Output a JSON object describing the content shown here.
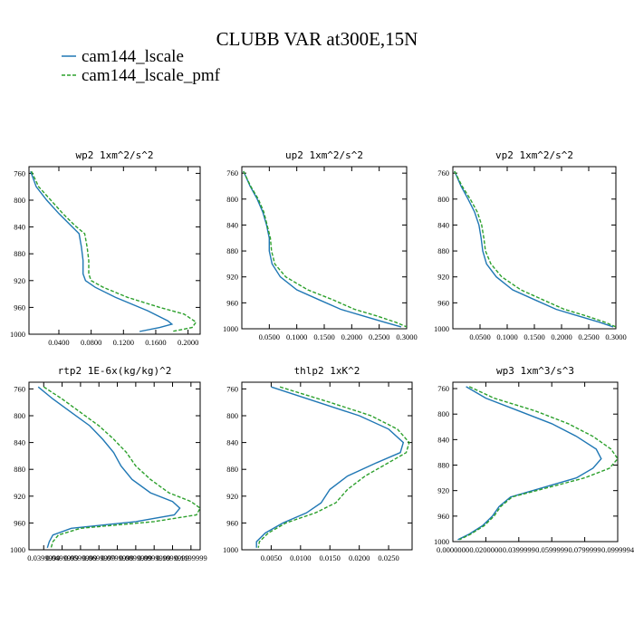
{
  "title": "CLUBB VAR at300E,15N",
  "legend": [
    {
      "name": "cam144_lscale",
      "color": "#1f77b4",
      "dash": false
    },
    {
      "name": "cam144_lscale_pmf",
      "color": "#2ca02c",
      "dash": true
    }
  ],
  "chart_data": [
    {
      "type": "line",
      "title": "wp2  1xm^2/s^2",
      "ylim": [
        1000,
        750
      ],
      "yticks": [
        760,
        800,
        840,
        880,
        920,
        960,
        1000
      ],
      "ytick_labels": [
        "760",
        "800",
        "840",
        "880",
        "920",
        "960",
        "1000"
      ],
      "xlim": [
        0.003,
        0.215
      ],
      "xticks": [
        0.04,
        0.08,
        0.12,
        0.16,
        0.2
      ],
      "xtick_labels": [
        "0.0400",
        "0.0800",
        "0.1200",
        "0.1600",
        "0.2000"
      ],
      "series": [
        {
          "name": "cam144_lscale",
          "x": [
            0.005,
            0.012,
            0.025,
            0.04,
            0.055,
            0.065,
            0.068,
            0.07,
            0.07,
            0.073,
            0.085,
            0.11,
            0.15,
            0.175,
            0.18,
            0.165,
            0.14
          ],
          "y": [
            757,
            780,
            800,
            820,
            838,
            850,
            870,
            890,
            910,
            920,
            930,
            945,
            965,
            980,
            985,
            990,
            996
          ]
        },
        {
          "name": "cam144_lscale_pmf",
          "x": [
            0.006,
            0.015,
            0.03,
            0.045,
            0.06,
            0.072,
            0.075,
            0.077,
            0.077,
            0.08,
            0.095,
            0.125,
            0.165,
            0.195,
            0.21,
            0.205,
            0.18
          ],
          "y": [
            757,
            780,
            800,
            820,
            838,
            850,
            870,
            890,
            910,
            920,
            930,
            945,
            960,
            970,
            982,
            990,
            996
          ]
        }
      ]
    },
    {
      "type": "line",
      "title": "up2  1xm^2/s^2",
      "ylim": [
        1000,
        750
      ],
      "yticks": [
        760,
        800,
        840,
        880,
        920,
        960,
        1000
      ],
      "ytick_labels": [
        "760",
        "800",
        "840",
        "880",
        "920",
        "960",
        "1000"
      ],
      "xlim": [
        0.0,
        0.3
      ],
      "xticks": [
        0.05,
        0.1,
        0.15,
        0.2,
        0.25,
        0.3
      ],
      "xtick_labels": [
        "0.0500",
        "0.1000",
        "0.1500",
        "0.2000",
        "0.2500",
        "0.3000"
      ],
      "series": [
        {
          "name": "cam144_lscale",
          "x": [
            0.003,
            0.015,
            0.028,
            0.038,
            0.045,
            0.05,
            0.05,
            0.055,
            0.07,
            0.1,
            0.14,
            0.18,
            0.22,
            0.26,
            0.29
          ],
          "y": [
            757,
            780,
            800,
            820,
            840,
            860,
            880,
            900,
            920,
            940,
            955,
            970,
            980,
            990,
            997
          ]
        },
        {
          "name": "cam144_lscale_pmf",
          "x": [
            0.003,
            0.016,
            0.03,
            0.04,
            0.046,
            0.052,
            0.054,
            0.06,
            0.08,
            0.12,
            0.165,
            0.205,
            0.245,
            0.28,
            0.3
          ],
          "y": [
            757,
            780,
            800,
            820,
            840,
            860,
            880,
            900,
            920,
            940,
            955,
            970,
            980,
            990,
            997
          ]
        }
      ]
    },
    {
      "type": "line",
      "title": "vp2  1xm^2/s^2",
      "ylim": [
        1000,
        750
      ],
      "yticks": [
        760,
        800,
        840,
        880,
        920,
        960,
        1000
      ],
      "ytick_labels": [
        "760",
        "800",
        "840",
        "880",
        "920",
        "960",
        "1000"
      ],
      "xlim": [
        0.0,
        0.3
      ],
      "xticks": [
        0.05,
        0.1,
        0.15,
        0.2,
        0.25,
        0.3
      ],
      "xtick_labels": [
        "0.0500",
        "0.1000",
        "0.1500",
        "0.2000",
        "0.2500",
        "0.3000"
      ],
      "series": [
        {
          "name": "cam144_lscale",
          "x": [
            0.003,
            0.015,
            0.028,
            0.04,
            0.048,
            0.052,
            0.055,
            0.062,
            0.08,
            0.11,
            0.15,
            0.19,
            0.23,
            0.27,
            0.295
          ],
          "y": [
            757,
            780,
            800,
            820,
            840,
            860,
            880,
            900,
            920,
            940,
            955,
            970,
            980,
            990,
            997
          ]
        },
        {
          "name": "cam144_lscale_pmf",
          "x": [
            0.003,
            0.017,
            0.032,
            0.045,
            0.053,
            0.057,
            0.06,
            0.07,
            0.09,
            0.125,
            0.165,
            0.205,
            0.245,
            0.28,
            0.3
          ],
          "y": [
            757,
            780,
            800,
            820,
            840,
            860,
            880,
            900,
            920,
            940,
            955,
            970,
            980,
            990,
            997
          ]
        }
      ]
    },
    {
      "type": "line",
      "title": "rtp2  1E-6x(kg/kg)^2",
      "ylim": [
        1000,
        750
      ],
      "yticks": [
        760,
        800,
        840,
        880,
        920,
        960,
        1000
      ],
      "ytick_labels": [
        "760",
        "800",
        "840",
        "880",
        "920",
        "960",
        "1000"
      ],
      "xlim": [
        0.032,
        0.125
      ],
      "xticks": [
        0.04,
        0.05,
        0.06,
        0.07,
        0.08,
        0.09,
        0.1,
        0.11,
        0.12
      ],
      "xtick_labels": [
        "0.0399999",
        "0.0499999",
        "0.0599999",
        "0.0699999",
        "0.0799999",
        "0.0899999",
        "0.0999999",
        "0.1099999",
        "0.1199999"
      ],
      "series": [
        {
          "name": "cam144_lscale",
          "x": [
            0.037,
            0.045,
            0.055,
            0.065,
            0.072,
            0.078,
            0.082,
            0.088,
            0.098,
            0.11,
            0.114,
            0.111,
            0.09,
            0.055,
            0.045,
            0.043,
            0.042
          ],
          "y": [
            757,
            775,
            795,
            815,
            835,
            855,
            875,
            895,
            915,
            928,
            938,
            948,
            958,
            968,
            978,
            988,
            997
          ]
        },
        {
          "name": "cam144_lscale_pmf",
          "x": [
            0.04,
            0.05,
            0.06,
            0.07,
            0.078,
            0.085,
            0.09,
            0.098,
            0.108,
            0.12,
            0.125,
            0.123,
            0.1,
            0.06,
            0.048,
            0.045,
            0.044
          ],
          "y": [
            757,
            775,
            795,
            815,
            835,
            855,
            875,
            895,
            915,
            928,
            938,
            948,
            958,
            968,
            978,
            988,
            997
          ]
        }
      ]
    },
    {
      "type": "line",
      "title": "thlp2  1xK^2",
      "ylim": [
        1000,
        750
      ],
      "yticks": [
        760,
        800,
        840,
        880,
        920,
        960,
        1000
      ],
      "ytick_labels": [
        "760",
        "800",
        "840",
        "880",
        "920",
        "960",
        "1000"
      ],
      "xlim": [
        0.0,
        0.029
      ],
      "xticks": [
        0.005,
        0.01,
        0.015,
        0.02,
        0.025
      ],
      "xtick_labels": [
        "0.0050",
        "0.0100",
        "0.0150",
        "0.0200",
        "0.0250"
      ],
      "series": [
        {
          "name": "cam144_lscale",
          "x": [
            0.005,
            0.013,
            0.02,
            0.025,
            0.0275,
            0.027,
            0.023,
            0.018,
            0.015,
            0.0135,
            0.011,
            0.007,
            0.004,
            0.0025,
            0.0025
          ],
          "y": [
            757,
            780,
            800,
            820,
            840,
            855,
            870,
            890,
            910,
            930,
            945,
            960,
            975,
            988,
            997
          ]
        },
        {
          "name": "cam144_lscale_pmf",
          "x": [
            0.0065,
            0.015,
            0.022,
            0.0265,
            0.0285,
            0.028,
            0.025,
            0.021,
            0.018,
            0.016,
            0.0125,
            0.0075,
            0.0045,
            0.003,
            0.0028
          ],
          "y": [
            757,
            780,
            800,
            820,
            840,
            855,
            870,
            890,
            910,
            930,
            945,
            960,
            975,
            988,
            997
          ]
        }
      ]
    },
    {
      "type": "line",
      "title": "wp3  1xm^3/s^3",
      "ylim": [
        1000,
        750
      ],
      "yticks": [
        760,
        800,
        840,
        880,
        920,
        960,
        1000
      ],
      "ytick_labels": [
        "760",
        "800",
        "840",
        "880",
        "920",
        "960",
        "1000"
      ],
      "xlim": [
        0.0,
        0.1
      ],
      "xticks": [
        0.0,
        0.02,
        0.04,
        0.06,
        0.08,
        0.1
      ],
      "xtick_labels": [
        "0.0000000",
        "0.0200000",
        "0.0399999",
        "0.0599999",
        "0.0799999",
        "0.0999994"
      ],
      "series": [
        {
          "name": "cam144_lscale",
          "x": [
            0.008,
            0.02,
            0.04,
            0.06,
            0.075,
            0.087,
            0.09,
            0.085,
            0.075,
            0.055,
            0.035,
            0.028,
            0.024,
            0.018,
            0.01,
            0.003
          ],
          "y": [
            757,
            775,
            795,
            815,
            835,
            855,
            870,
            885,
            900,
            915,
            930,
            945,
            960,
            975,
            988,
            997
          ]
        },
        {
          "name": "cam144_lscale_pmf",
          "x": [
            0.01,
            0.025,
            0.05,
            0.07,
            0.085,
            0.096,
            0.1,
            0.095,
            0.08,
            0.058,
            0.036,
            0.029,
            0.025,
            0.019,
            0.011,
            0.004
          ],
          "y": [
            757,
            775,
            795,
            815,
            835,
            855,
            870,
            885,
            900,
            915,
            930,
            945,
            960,
            975,
            988,
            997
          ]
        }
      ]
    }
  ]
}
